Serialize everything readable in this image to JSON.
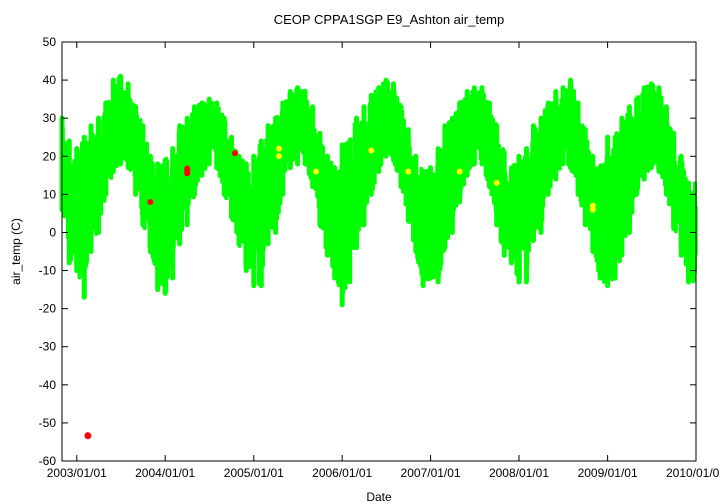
{
  "chart_data": {
    "type": "scatter",
    "title": "CEOP CPPA1SGP E9_Ashton  air_temp",
    "xlabel": "Date",
    "ylabel": "air_temp (C)",
    "xlim": [
      "2002-11-01",
      "2010-01-01"
    ],
    "ylim": [
      -60,
      50
    ],
    "yticks": [
      50,
      40,
      30,
      20,
      10,
      0,
      -10,
      -20,
      -30,
      -40,
      -50,
      -60
    ],
    "xticks": [
      "2003/01/01",
      "2004/01/01",
      "2005/01/01",
      "2006/01/01",
      "2007/01/01",
      "2008/01/01",
      "2009/01/01",
      "2010/01/01"
    ],
    "grid": false,
    "colors": {
      "main": "#00ff00",
      "flag_red": "#ff0000",
      "flag_yellow": "#ffff00"
    },
    "series": [
      {
        "color": "#00ff00",
        "description_band": "daily min/max envelope (values listed as weekly range samples)",
        "x": [
          "2002-11-01",
          "2002-12-01",
          "2003-01-01",
          "2003-02-01",
          "2003-03-01",
          "2003-04-01",
          "2003-05-01",
          "2003-06-01",
          "2003-07-01",
          "2003-08-01",
          "2003-09-01",
          "2003-10-01",
          "2003-11-01",
          "2003-12-01",
          "2004-01-01",
          "2004-02-01",
          "2004-03-01",
          "2004-04-01",
          "2004-05-01",
          "2004-06-01",
          "2004-07-01",
          "2004-08-01",
          "2004-09-01",
          "2004-10-01",
          "2004-11-01",
          "2004-12-01",
          "2005-01-01",
          "2005-02-01",
          "2005-03-01",
          "2005-04-01",
          "2005-05-01",
          "2005-06-01",
          "2005-07-01",
          "2005-08-01",
          "2005-09-01",
          "2005-10-01",
          "2005-11-01",
          "2005-12-01",
          "2006-01-01",
          "2006-02-01",
          "2006-03-01",
          "2006-04-01",
          "2006-05-01",
          "2006-06-01",
          "2006-07-01",
          "2006-08-01",
          "2006-09-01",
          "2006-10-01",
          "2006-11-01",
          "2006-12-01",
          "2007-01-01",
          "2007-02-01",
          "2007-03-01",
          "2007-04-01",
          "2007-05-01",
          "2007-06-01",
          "2007-07-01",
          "2007-08-01",
          "2007-09-01",
          "2007-10-01",
          "2007-11-01",
          "2007-12-01",
          "2008-01-01",
          "2008-02-01",
          "2008-03-01",
          "2008-04-01",
          "2008-05-01",
          "2008-06-01",
          "2008-07-01",
          "2008-08-01",
          "2008-09-01",
          "2008-10-01",
          "2008-11-01",
          "2008-12-01",
          "2009-01-01",
          "2009-02-01",
          "2009-03-01",
          "2009-04-01",
          "2009-05-01",
          "2009-06-01",
          "2009-07-01",
          "2009-08-01",
          "2009-09-01",
          "2009-10-01",
          "2009-11-01",
          "2009-12-01"
        ],
        "ymin": [
          6,
          -8,
          -10,
          -17,
          -5,
          0,
          10,
          16,
          18,
          17,
          10,
          2,
          -5,
          -15,
          -16,
          -12,
          -3,
          2,
          10,
          15,
          18,
          17,
          10,
          4,
          -3,
          -10,
          -14,
          -14,
          -3,
          0,
          10,
          17,
          18,
          18,
          12,
          2,
          -6,
          -12,
          -19,
          -13,
          -4,
          2,
          10,
          16,
          20,
          19,
          12,
          3,
          -5,
          -14,
          -12,
          -13,
          -4,
          0,
          8,
          15,
          18,
          18,
          12,
          2,
          -6,
          -8,
          -13,
          -13,
          -2,
          0,
          10,
          14,
          18,
          17,
          10,
          2,
          -5,
          -12,
          -14,
          -12,
          -6,
          0,
          10,
          14,
          17,
          16,
          10,
          1,
          -6,
          -13
        ],
        "ymax": [
          30,
          24,
          22,
          25,
          28,
          30,
          34,
          40,
          41,
          39,
          33,
          28,
          20,
          18,
          19,
          22,
          28,
          30,
          33,
          34,
          35,
          34,
          30,
          25,
          20,
          18,
          20,
          24,
          28,
          30,
          34,
          37,
          38,
          37,
          33,
          26,
          20,
          17,
          23,
          24,
          30,
          33,
          36,
          38,
          40,
          39,
          33,
          27,
          20,
          16,
          17,
          22,
          28,
          30,
          34,
          37,
          38,
          38,
          34,
          28,
          21,
          17,
          20,
          22,
          28,
          30,
          34,
          37,
          38,
          40,
          34,
          27,
          20,
          17,
          25,
          25,
          30,
          33,
          35,
          38,
          39,
          38,
          33,
          26,
          20,
          13
        ]
      },
      {
        "color": "#ff0000",
        "x": [
          "2003-02-15",
          "2003-02-15",
          "2003-02-18",
          "2003-11-01",
          "2004-04-01",
          "2004-04-01",
          "2004-04-01",
          "2004-10-15"
        ],
        "y": [
          -53.5,
          -53.2,
          -53.4,
          8,
          16.8,
          16.2,
          15.5,
          20.8
        ]
      },
      {
        "color": "#ffff00",
        "x": [
          "2005-04-15",
          "2005-04-15",
          "2005-09-15",
          "2006-05-01",
          "2006-10-01",
          "2007-05-01",
          "2007-10-01",
          "2008-11-01",
          "2008-11-01"
        ],
        "y": [
          22,
          20,
          16,
          21.5,
          16,
          16,
          13,
          7,
          6
        ]
      }
    ]
  }
}
